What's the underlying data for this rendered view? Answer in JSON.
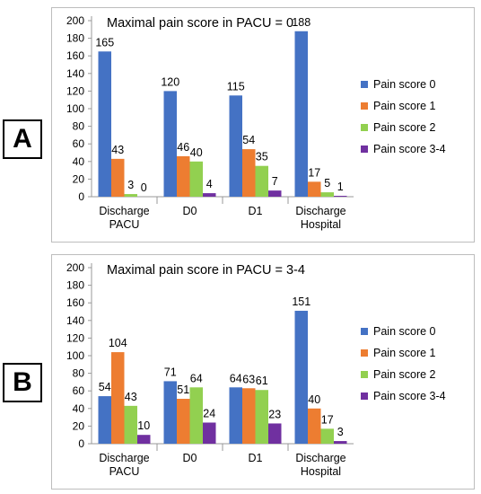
{
  "panels": [
    {
      "label": "A",
      "chart_data": {
        "type": "bar",
        "title": "Maximal pain score in PACU = 0",
        "categories": [
          [
            "Discharge",
            "PACU"
          ],
          [
            "D0"
          ],
          [
            "D1"
          ],
          [
            "Discharge",
            "Hospital"
          ]
        ],
        "ylim": [
          0,
          200
        ],
        "yticks": [
          0,
          20,
          40,
          60,
          80,
          100,
          120,
          140,
          160,
          180,
          200
        ],
        "legend_position": "right",
        "series": [
          {
            "name": "Pain score 0",
            "color": "#4472C4",
            "values": [
              165,
              120,
              115,
              188
            ]
          },
          {
            "name": "Pain score 1",
            "color": "#ED7D31",
            "values": [
              43,
              46,
              54,
              17
            ]
          },
          {
            "name": "Pain score 2",
            "color": "#92D050",
            "values": [
              3,
              40,
              35,
              5
            ]
          },
          {
            "name": "Pain score  3-4",
            "color": "#7030A0",
            "values": [
              0,
              4,
              7,
              1
            ]
          }
        ]
      }
    },
    {
      "label": "B",
      "chart_data": {
        "type": "bar",
        "title": "Maximal pain score in PACU = 3-4",
        "categories": [
          [
            "Discharge",
            "PACU"
          ],
          [
            "D0"
          ],
          [
            "D1"
          ],
          [
            "Discharge",
            "Hospital"
          ]
        ],
        "ylim": [
          0,
          200
        ],
        "yticks": [
          0,
          20,
          40,
          60,
          80,
          100,
          120,
          140,
          160,
          180,
          200
        ],
        "legend_position": "right",
        "series": [
          {
            "name": "Pain score 0",
            "color": "#4472C4",
            "values": [
              54,
              71,
              64,
              151
            ]
          },
          {
            "name": "Pain score 1",
            "color": "#ED7D31",
            "values": [
              104,
              51,
              63,
              40
            ]
          },
          {
            "name": "Pain score 2",
            "color": "#92D050",
            "values": [
              43,
              64,
              61,
              17
            ]
          },
          {
            "name": "Pain score  3-4",
            "color": "#7030A0",
            "values": [
              10,
              24,
              23,
              3
            ]
          }
        ]
      }
    }
  ]
}
